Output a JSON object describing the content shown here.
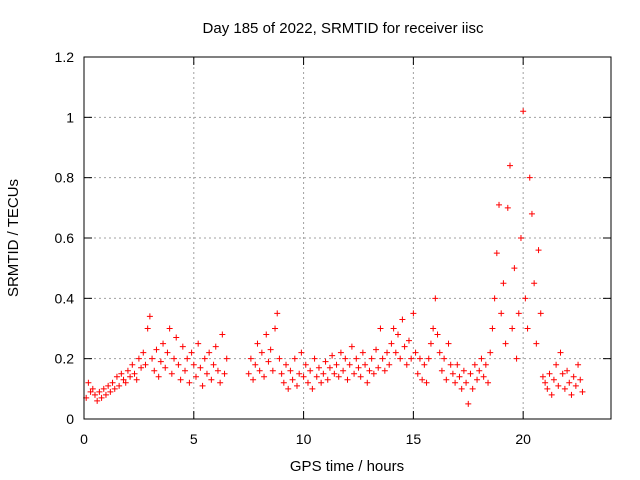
{
  "chart_data": {
    "type": "scatter",
    "title": "Day 185 of 2022, SRMTID for receiver iisc",
    "xlabel": "GPS time / hours",
    "ylabel": "SRMTID / TECUs",
    "xlim": [
      0,
      24
    ],
    "ylim": [
      0,
      1.2
    ],
    "x_ticks": [
      0,
      5,
      10,
      15,
      20
    ],
    "x_tick_labels": [
      "0",
      "5",
      "10",
      "15",
      "20"
    ],
    "y_ticks": [
      0,
      0.2,
      0.4,
      0.6,
      0.8,
      1.0,
      1.2
    ],
    "y_tick_labels": [
      "0",
      "0.2",
      "0.4",
      "0.6",
      "0.8",
      "1",
      "1.2"
    ],
    "grid": true,
    "marker": "+",
    "series": [
      {
        "name": "SRMTID",
        "color": "#ff0000",
        "points": [
          [
            0.1,
            0.07
          ],
          [
            0.2,
            0.12
          ],
          [
            0.3,
            0.09
          ],
          [
            0.4,
            0.1
          ],
          [
            0.5,
            0.08
          ],
          [
            0.6,
            0.06
          ],
          [
            0.7,
            0.09
          ],
          [
            0.8,
            0.07
          ],
          [
            0.9,
            0.1
          ],
          [
            1.0,
            0.08
          ],
          [
            1.1,
            0.11
          ],
          [
            1.2,
            0.09
          ],
          [
            1.3,
            0.12
          ],
          [
            1.4,
            0.1
          ],
          [
            1.5,
            0.14
          ],
          [
            1.6,
            0.11
          ],
          [
            1.7,
            0.15
          ],
          [
            1.8,
            0.13
          ],
          [
            1.9,
            0.12
          ],
          [
            2.0,
            0.16
          ],
          [
            2.1,
            0.14
          ],
          [
            2.2,
            0.18
          ],
          [
            2.3,
            0.15
          ],
          [
            2.4,
            0.13
          ],
          [
            2.5,
            0.2
          ],
          [
            2.6,
            0.17
          ],
          [
            2.7,
            0.22
          ],
          [
            2.8,
            0.18
          ],
          [
            2.9,
            0.3
          ],
          [
            3.0,
            0.34
          ],
          [
            3.1,
            0.2
          ],
          [
            3.2,
            0.16
          ],
          [
            3.3,
            0.23
          ],
          [
            3.4,
            0.14
          ],
          [
            3.5,
            0.19
          ],
          [
            3.6,
            0.25
          ],
          [
            3.7,
            0.17
          ],
          [
            3.8,
            0.22
          ],
          [
            3.9,
            0.3
          ],
          [
            4.0,
            0.15
          ],
          [
            4.1,
            0.2
          ],
          [
            4.2,
            0.27
          ],
          [
            4.3,
            0.18
          ],
          [
            4.4,
            0.13
          ],
          [
            4.5,
            0.24
          ],
          [
            4.6,
            0.16
          ],
          [
            4.7,
            0.2
          ],
          [
            4.8,
            0.12
          ],
          [
            4.9,
            0.22
          ],
          [
            5.0,
            0.18
          ],
          [
            5.1,
            0.14
          ],
          [
            5.2,
            0.25
          ],
          [
            5.3,
            0.17
          ],
          [
            5.4,
            0.11
          ],
          [
            5.5,
            0.2
          ],
          [
            5.6,
            0.15
          ],
          [
            5.7,
            0.22
          ],
          [
            5.8,
            0.13
          ],
          [
            5.9,
            0.18
          ],
          [
            6.0,
            0.24
          ],
          [
            6.1,
            0.16
          ],
          [
            6.2,
            0.12
          ],
          [
            6.3,
            0.28
          ],
          [
            6.4,
            0.15
          ],
          [
            6.5,
            0.2
          ],
          [
            7.5,
            0.15
          ],
          [
            7.6,
            0.2
          ],
          [
            7.7,
            0.13
          ],
          [
            7.8,
            0.18
          ],
          [
            7.9,
            0.25
          ],
          [
            8.0,
            0.16
          ],
          [
            8.1,
            0.22
          ],
          [
            8.2,
            0.14
          ],
          [
            8.3,
            0.28
          ],
          [
            8.4,
            0.19
          ],
          [
            8.5,
            0.23
          ],
          [
            8.6,
            0.16
          ],
          [
            8.7,
            0.3
          ],
          [
            8.8,
            0.35
          ],
          [
            8.9,
            0.2
          ],
          [
            9.0,
            0.15
          ],
          [
            9.1,
            0.12
          ],
          [
            9.2,
            0.18
          ],
          [
            9.3,
            0.1
          ],
          [
            9.4,
            0.16
          ],
          [
            9.5,
            0.13
          ],
          [
            9.6,
            0.2
          ],
          [
            9.7,
            0.11
          ],
          [
            9.8,
            0.15
          ],
          [
            9.9,
            0.22
          ],
          [
            10.0,
            0.14
          ],
          [
            10.1,
            0.18
          ],
          [
            10.2,
            0.12
          ],
          [
            10.3,
            0.16
          ],
          [
            10.4,
            0.1
          ],
          [
            10.5,
            0.2
          ],
          [
            10.6,
            0.14
          ],
          [
            10.7,
            0.17
          ],
          [
            10.8,
            0.12
          ],
          [
            10.9,
            0.15
          ],
          [
            11.0,
            0.19
          ],
          [
            11.1,
            0.13
          ],
          [
            11.2,
            0.17
          ],
          [
            11.3,
            0.21
          ],
          [
            11.4,
            0.15
          ],
          [
            11.5,
            0.18
          ],
          [
            11.6,
            0.14
          ],
          [
            11.7,
            0.22
          ],
          [
            11.8,
            0.16
          ],
          [
            11.9,
            0.2
          ],
          [
            12.0,
            0.13
          ],
          [
            12.1,
            0.18
          ],
          [
            12.2,
            0.24
          ],
          [
            12.3,
            0.15
          ],
          [
            12.4,
            0.2
          ],
          [
            12.5,
            0.17
          ],
          [
            12.6,
            0.14
          ],
          [
            12.7,
            0.22
          ],
          [
            12.8,
            0.18
          ],
          [
            12.9,
            0.12
          ],
          [
            13.0,
            0.16
          ],
          [
            13.1,
            0.2
          ],
          [
            13.2,
            0.15
          ],
          [
            13.3,
            0.23
          ],
          [
            13.4,
            0.17
          ],
          [
            13.5,
            0.3
          ],
          [
            13.6,
            0.2
          ],
          [
            13.7,
            0.16
          ],
          [
            13.8,
            0.22
          ],
          [
            13.9,
            0.18
          ],
          [
            14.0,
            0.25
          ],
          [
            14.1,
            0.3
          ],
          [
            14.2,
            0.22
          ],
          [
            14.3,
            0.28
          ],
          [
            14.4,
            0.2
          ],
          [
            14.5,
            0.33
          ],
          [
            14.6,
            0.24
          ],
          [
            14.7,
            0.18
          ],
          [
            14.8,
            0.26
          ],
          [
            14.9,
            0.2
          ],
          [
            15.0,
            0.35
          ],
          [
            15.1,
            0.22
          ],
          [
            15.2,
            0.15
          ],
          [
            15.3,
            0.2
          ],
          [
            15.4,
            0.13
          ],
          [
            15.5,
            0.18
          ],
          [
            15.6,
            0.12
          ],
          [
            15.7,
            0.2
          ],
          [
            15.8,
            0.25
          ],
          [
            15.9,
            0.3
          ],
          [
            16.0,
            0.4
          ],
          [
            16.1,
            0.28
          ],
          [
            16.2,
            0.22
          ],
          [
            16.3,
            0.16
          ],
          [
            16.4,
            0.2
          ],
          [
            16.5,
            0.13
          ],
          [
            16.6,
            0.25
          ],
          [
            16.7,
            0.18
          ],
          [
            16.8,
            0.15
          ],
          [
            16.9,
            0.12
          ],
          [
            17.0,
            0.18
          ],
          [
            17.1,
            0.14
          ],
          [
            17.2,
            0.1
          ],
          [
            17.3,
            0.16
          ],
          [
            17.4,
            0.12
          ],
          [
            17.5,
            0.05
          ],
          [
            17.6,
            0.15
          ],
          [
            17.7,
            0.1
          ],
          [
            17.8,
            0.18
          ],
          [
            17.9,
            0.13
          ],
          [
            18.0,
            0.16
          ],
          [
            18.1,
            0.2
          ],
          [
            18.2,
            0.14
          ],
          [
            18.3,
            0.18
          ],
          [
            18.4,
            0.12
          ],
          [
            18.5,
            0.22
          ],
          [
            18.6,
            0.3
          ],
          [
            18.7,
            0.4
          ],
          [
            18.8,
            0.55
          ],
          [
            18.9,
            0.71
          ],
          [
            19.0,
            0.35
          ],
          [
            19.1,
            0.45
          ],
          [
            19.2,
            0.25
          ],
          [
            19.3,
            0.7
          ],
          [
            19.4,
            0.84
          ],
          [
            19.5,
            0.3
          ],
          [
            19.6,
            0.5
          ],
          [
            19.7,
            0.2
          ],
          [
            19.8,
            0.35
          ],
          [
            19.9,
            0.6
          ],
          [
            20.0,
            1.02
          ],
          [
            20.1,
            0.4
          ],
          [
            20.2,
            0.3
          ],
          [
            20.3,
            0.8
          ],
          [
            20.4,
            0.68
          ],
          [
            20.5,
            0.45
          ],
          [
            20.6,
            0.25
          ],
          [
            20.7,
            0.56
          ],
          [
            20.8,
            0.35
          ],
          [
            20.9,
            0.14
          ],
          [
            21.0,
            0.12
          ],
          [
            21.1,
            0.1
          ],
          [
            21.2,
            0.15
          ],
          [
            21.3,
            0.08
          ],
          [
            21.4,
            0.13
          ],
          [
            21.5,
            0.18
          ],
          [
            21.6,
            0.11
          ],
          [
            21.7,
            0.22
          ],
          [
            21.8,
            0.15
          ],
          [
            21.9,
            0.1
          ],
          [
            22.0,
            0.16
          ],
          [
            22.1,
            0.12
          ],
          [
            22.2,
            0.08
          ],
          [
            22.3,
            0.14
          ],
          [
            22.4,
            0.11
          ],
          [
            22.5,
            0.18
          ],
          [
            22.6,
            0.13
          ],
          [
            22.7,
            0.09
          ]
        ]
      }
    ]
  }
}
